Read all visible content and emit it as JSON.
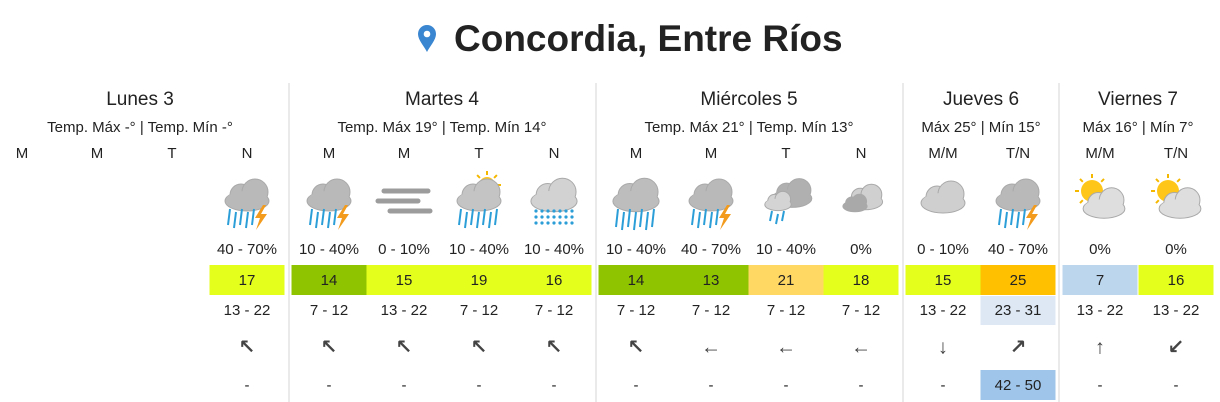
{
  "header": {
    "title": "Concordia, Entre Ríos"
  },
  "days": [
    {
      "name": "Lunes 3",
      "temps": "Temp. Máx -° | Temp. Mín -°",
      "periods": [
        {
          "period": "M"
        },
        {
          "period": "M"
        },
        {
          "period": "T"
        },
        {
          "period": "N",
          "precip": "40 - 70%",
          "temp": 17,
          "wind": "13 - 22",
          "dir": "↖",
          "gust": "-"
        }
      ]
    },
    {
      "name": "Martes 4",
      "temps": "Temp. Máx 19° | Temp. Mín 14°",
      "periods": [
        {
          "period": "M",
          "precip": "10 - 40%",
          "temp": 14,
          "wind": "7 - 12",
          "dir": "↖",
          "gust": "-"
        },
        {
          "period": "M",
          "precip": "0 - 10%",
          "temp": 15,
          "wind": "13 - 22",
          "dir": "↖",
          "gust": "-"
        },
        {
          "period": "T",
          "precip": "10 - 40%",
          "temp": 19,
          "wind": "7 - 12",
          "dir": "↖",
          "gust": "-"
        },
        {
          "period": "N",
          "precip": "10 - 40%",
          "temp": 16,
          "wind": "7 - 12",
          "dir": "↖",
          "gust": "-"
        }
      ]
    },
    {
      "name": "Miércoles 5",
      "temps": "Temp. Máx 21° | Temp. Mín 13°",
      "periods": [
        {
          "period": "M",
          "precip": "10 - 40%",
          "temp": 14,
          "wind": "7 - 12",
          "dir": "↖",
          "gust": "-"
        },
        {
          "period": "M",
          "precip": "40 - 70%",
          "temp": 13,
          "wind": "7 - 12",
          "dir": "←",
          "gust": "-"
        },
        {
          "period": "T",
          "precip": "10 - 40%",
          "temp": 21,
          "wind": "7 - 12",
          "dir": "←",
          "gust": "-"
        },
        {
          "period": "N",
          "precip": "0%",
          "temp": 18,
          "wind": "7 - 12",
          "dir": "←",
          "gust": "-"
        }
      ]
    },
    {
      "name": "Jueves 6",
      "temps": "Máx 25° | Mín 15°",
      "periods": [
        {
          "period": "M/M",
          "precip": "0 - 10%",
          "temp": 15,
          "wind": "13 - 22",
          "dir": "↓",
          "gust": "-"
        },
        {
          "period": "T/N",
          "precip": "40 - 70%",
          "temp": 25,
          "wind": "23 - 31",
          "dir": "↗",
          "gust": "42 - 50"
        }
      ]
    },
    {
      "name": "Viernes 7",
      "temps": "Máx 16° | Mín 7°",
      "periods": [
        {
          "period": "M/M",
          "precip": "0%",
          "temp": 7,
          "wind": "13 - 22",
          "dir": "↑",
          "gust": "-"
        },
        {
          "period": "T/N",
          "precip": "0%",
          "temp": 16,
          "wind": "13 - 22",
          "dir": "↙",
          "gust": "-"
        }
      ]
    }
  ]
}
